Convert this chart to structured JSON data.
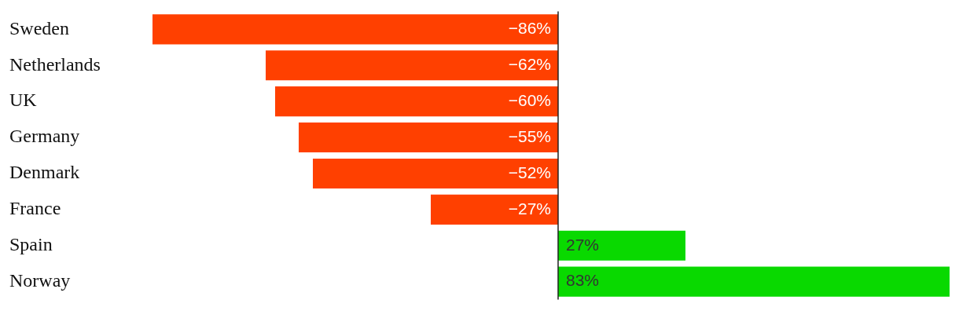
{
  "chart_data": {
    "type": "bar",
    "orientation": "horizontal",
    "categories": [
      "Sweden",
      "Netherlands",
      "UK",
      "Germany",
      "Denmark",
      "France",
      "Spain",
      "Norway"
    ],
    "values": [
      -86,
      -62,
      -60,
      -55,
      -52,
      -27,
      27,
      83
    ],
    "colors": [
      "#ff4000",
      "#ff4000",
      "#ff4000",
      "#ff4000",
      "#ff4000",
      "#ff4000",
      "#09d900",
      "#09d900"
    ],
    "value_labels": [
      "−86%",
      "−62%",
      "−60%",
      "−55%",
      "−52%",
      "−27%",
      "27%",
      "83%"
    ],
    "xlim": [
      -86,
      83
    ],
    "legend": false,
    "tick_labels": "y"
  }
}
